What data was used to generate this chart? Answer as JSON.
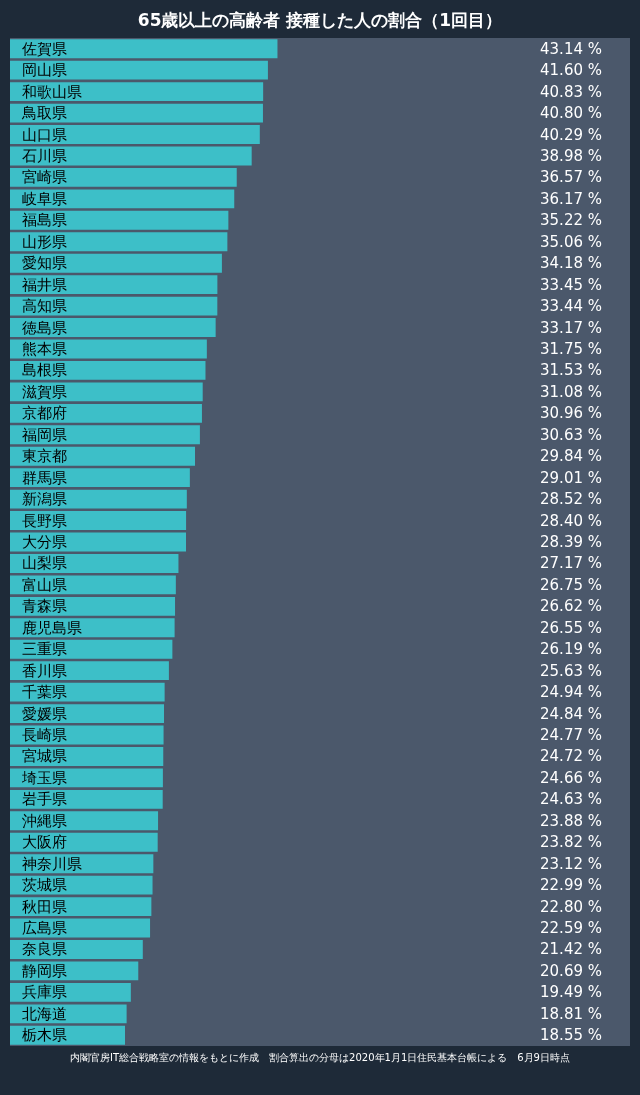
{
  "chart_data": {
    "type": "bar",
    "orientation": "horizontal",
    "title": "65歳以上の高齢者 接種した人の割合（1回目）",
    "categories": [
      "佐賀県",
      "岡山県",
      "和歌山県",
      "鳥取県",
      "山口県",
      "石川県",
      "宮崎県",
      "岐阜県",
      "福島県",
      "山形県",
      "愛知県",
      "福井県",
      "高知県",
      "徳島県",
      "熊本県",
      "島根県",
      "滋賀県",
      "京都府",
      "福岡県",
      "東京都",
      "群馬県",
      "新潟県",
      "長野県",
      "大分県",
      "山梨県",
      "富山県",
      "青森県",
      "鹿児島県",
      "三重県",
      "香川県",
      "千葉県",
      "愛媛県",
      "長崎県",
      "宮城県",
      "埼玉県",
      "岩手県",
      "沖縄県",
      "大阪府",
      "神奈川県",
      "茨城県",
      "秋田県",
      "広島県",
      "奈良県",
      "静岡県",
      "兵庫県",
      "北海道",
      "栃木県"
    ],
    "values": [
      43.14,
      41.6,
      40.83,
      40.8,
      40.29,
      38.98,
      36.57,
      36.17,
      35.22,
      35.06,
      34.18,
      33.45,
      33.44,
      33.17,
      31.75,
      31.53,
      31.08,
      30.96,
      30.63,
      29.84,
      29.01,
      28.52,
      28.4,
      28.39,
      27.17,
      26.75,
      26.62,
      26.55,
      26.19,
      25.63,
      24.94,
      24.84,
      24.77,
      24.72,
      24.66,
      24.63,
      23.88,
      23.82,
      23.12,
      22.99,
      22.8,
      22.59,
      21.42,
      20.69,
      19.49,
      18.81,
      18.55
    ],
    "value_labels": [
      "43.14 %",
      "41.60 %",
      "40.83 %",
      "40.80 %",
      "40.29 %",
      "38.98 %",
      "36.57 %",
      "36.17 %",
      "35.22 %",
      "35.06 %",
      "34.18 %",
      "33.45 %",
      "33.44 %",
      "33.17 %",
      "31.75 %",
      "31.53 %",
      "31.08 %",
      "30.96 %",
      "30.63 %",
      "29.84 %",
      "29.01 %",
      "28.52 %",
      "28.40 %",
      "28.39 %",
      "27.17 %",
      "26.75 %",
      "26.62 %",
      "26.55 %",
      "26.19 %",
      "25.63 %",
      "24.94 %",
      "24.84 %",
      "24.77 %",
      "24.72 %",
      "24.66 %",
      "24.63 %",
      "23.88 %",
      "23.82 %",
      "23.12 %",
      "22.99 %",
      "22.80 %",
      "22.59 %",
      "21.42 %",
      "20.69 %",
      "19.49 %",
      "18.81 %",
      "18.55 %"
    ],
    "color": "#3dbfc8",
    "xlim": [
      0,
      100
    ],
    "tick_labels": false,
    "bands": [
      {
        "axis": "x",
        "from": 0,
        "to": 100,
        "color": "#4b586b"
      }
    ],
    "annotations": [
      "内閣官房IT総合戦略室の情報をもとに作成　割合算出の分母は2020年1月1日住民基本台帳による　6月9日時点"
    ]
  }
}
